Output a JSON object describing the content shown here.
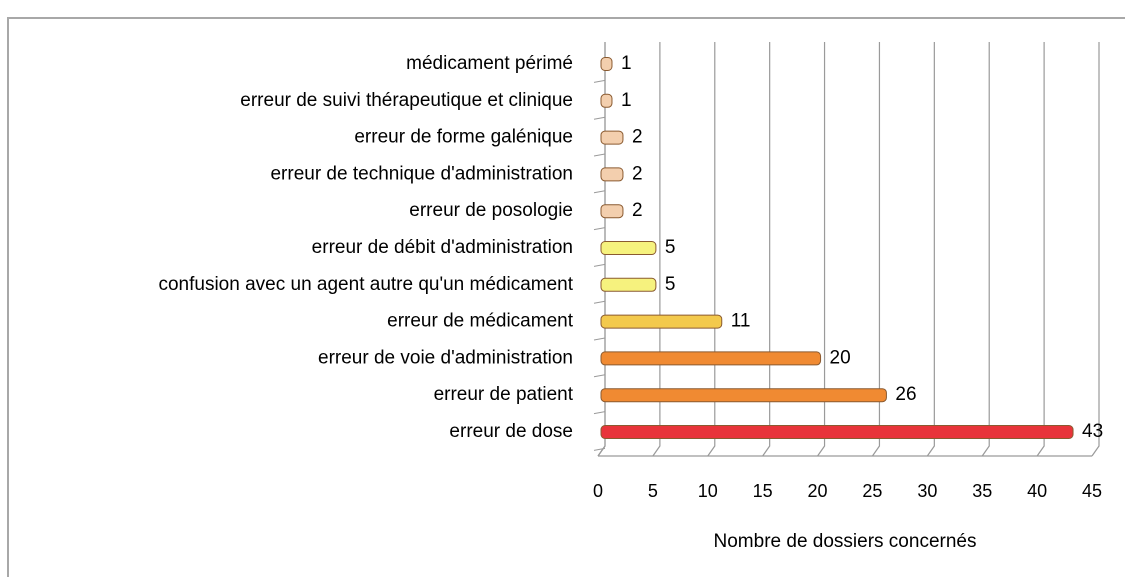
{
  "chart_data": {
    "type": "bar",
    "orientation": "horizontal",
    "x_label": "Nombre de dossiers concernés",
    "categories": [
      "médicament périmé",
      "erreur de suivi thérapeutique et clinique",
      "erreur de forme galénique",
      "erreur de technique d'administration",
      "erreur de posologie",
      "erreur de débit d'administration",
      "confusion avec un agent autre qu'un médicament",
      "erreur de médicament",
      "erreur de voie d'administration",
      "erreur de patient",
      "erreur de dose"
    ],
    "values": [
      1,
      1,
      2,
      2,
      2,
      5,
      5,
      11,
      20,
      26,
      43
    ],
    "colors": [
      "#f3cfae",
      "#f3cfae",
      "#f3cfae",
      "#f3cfae",
      "#f3cfae",
      "#f6f27e",
      "#f6f27e",
      "#f3c94c",
      "#f08a32",
      "#f08a32",
      "#e8343a"
    ],
    "xlim": [
      0,
      45
    ],
    "xticks": [
      0,
      5,
      10,
      15,
      20,
      25,
      30,
      35,
      40,
      45
    ],
    "grid": true
  }
}
